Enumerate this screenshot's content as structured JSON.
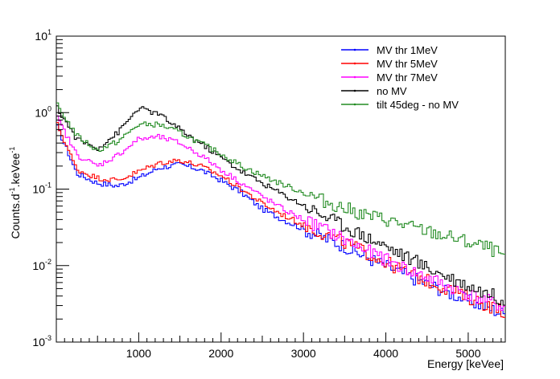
{
  "chart_data": {
    "type": "line",
    "title": "",
    "xlabel": "Energy [keVee]",
    "ylabel": "Counts.d",
    "ylabel_sup1": "-1",
    "ylabel_mid": ".keVee",
    "ylabel_sup2": "-1",
    "xlim": [
      0,
      5450
    ],
    "ylim": [
      0.001,
      10
    ],
    "yscale": "log",
    "x_ticks": [
      1000,
      2000,
      3000,
      4000,
      5000
    ],
    "x_tick_labels": [
      "1000",
      "2000",
      "3000",
      "4000",
      "5000"
    ],
    "y_ticks": [
      0.001,
      0.01,
      0.1,
      1,
      10
    ],
    "y_tick_base": [
      "10",
      "10",
      "10",
      "10",
      "10"
    ],
    "y_tick_exp": [
      "-3",
      "-2",
      "-1",
      "0",
      "1"
    ],
    "grid": false,
    "legend_position": "top-right",
    "x": [
      0,
      250,
      500,
      750,
      1000,
      1250,
      1500,
      1750,
      2000,
      2250,
      2500,
      2750,
      3000,
      3250,
      3500,
      3750,
      4000,
      4250,
      4500,
      4750,
      5000,
      5250,
      5450
    ],
    "series": [
      {
        "name": "MV thr 1MeV",
        "color": "#0000ff",
        "values": [
          0.7,
          0.16,
          0.12,
          0.11,
          0.14,
          0.19,
          0.21,
          0.18,
          0.13,
          0.09,
          0.055,
          0.04,
          0.03,
          0.023,
          0.018,
          0.013,
          0.01,
          0.0075,
          0.0058,
          0.0045,
          0.0035,
          0.0028,
          0.0023
        ]
      },
      {
        "name": "MV thr 5MeV",
        "color": "#ff0000",
        "values": [
          0.75,
          0.18,
          0.14,
          0.13,
          0.17,
          0.22,
          0.24,
          0.2,
          0.15,
          0.1,
          0.065,
          0.046,
          0.034,
          0.026,
          0.02,
          0.015,
          0.011,
          0.0082,
          0.0063,
          0.005,
          0.0038,
          0.003,
          0.0025
        ]
      },
      {
        "name": "MV thr 7MeV",
        "color": "#ff00ff",
        "values": [
          0.9,
          0.28,
          0.2,
          0.28,
          0.45,
          0.48,
          0.4,
          0.28,
          0.18,
          0.12,
          0.08,
          0.055,
          0.04,
          0.03,
          0.022,
          0.016,
          0.012,
          0.009,
          0.007,
          0.0054,
          0.0042,
          0.0034,
          0.0028
        ]
      },
      {
        "name": "no MV",
        "color": "#000000",
        "values": [
          1.2,
          0.45,
          0.34,
          0.55,
          1.15,
          0.95,
          0.6,
          0.4,
          0.26,
          0.17,
          0.12,
          0.085,
          0.062,
          0.045,
          0.033,
          0.024,
          0.018,
          0.013,
          0.0095,
          0.0072,
          0.0055,
          0.0043,
          0.0035
        ]
      },
      {
        "name": "tilt 45deg - no MV",
        "color": "#228b22",
        "values": [
          1.3,
          0.5,
          0.32,
          0.42,
          0.7,
          0.7,
          0.55,
          0.4,
          0.29,
          0.2,
          0.15,
          0.115,
          0.09,
          0.07,
          0.056,
          0.046,
          0.04,
          0.033,
          0.028,
          0.024,
          0.02,
          0.017,
          0.013
        ]
      }
    ]
  }
}
